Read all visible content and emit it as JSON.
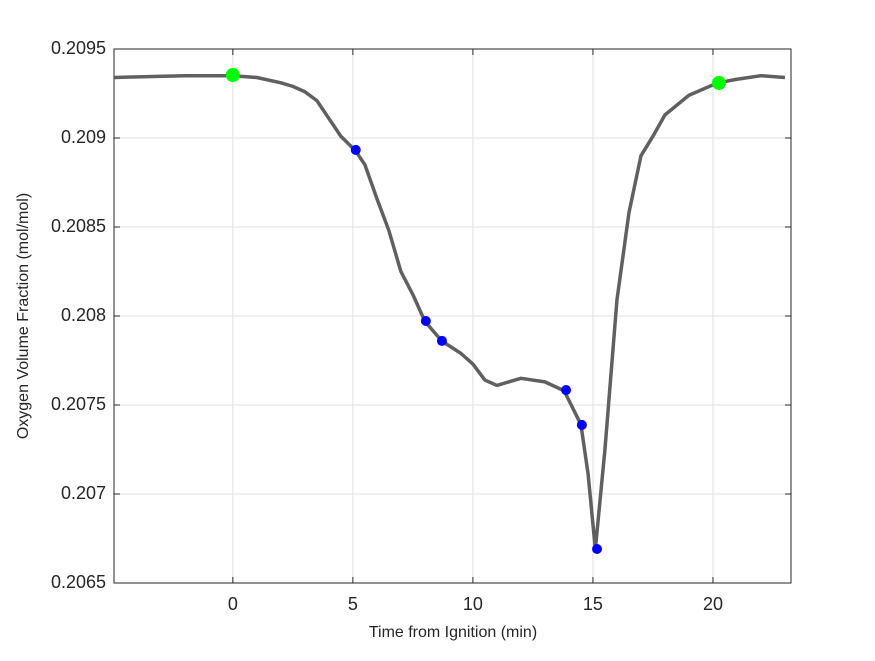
{
  "chart_data": {
    "type": "line",
    "xlabel": "Time from Ignition (min)",
    "ylabel": "Oxygen Volume Fraction (mol/mol)",
    "xlim": [
      -4.95,
      23.25
    ],
    "ylim": [
      0.2065,
      0.2095
    ],
    "xticks": [
      0,
      5,
      10,
      15,
      20
    ],
    "yticks": [
      0.2065,
      0.207,
      0.2075,
      0.208,
      0.2085,
      0.209,
      0.2095
    ],
    "grid": true,
    "series": [
      {
        "mode": "line",
        "color": "#606060",
        "x": [
          -4.95,
          -2,
          0,
          1,
          2,
          2.5,
          3,
          3.5,
          4,
          4.5,
          5.1,
          5.5,
          6,
          6.5,
          7,
          7.5,
          8,
          8.7,
          9.5,
          10,
          10.5,
          11,
          12,
          13,
          13.8,
          14.5,
          14.8,
          15.1,
          15.5,
          16,
          16.5,
          17,
          17.5,
          18,
          19,
          20.2,
          21,
          22,
          23
        ],
        "values": [
          0.20934,
          0.20935,
          0.20935,
          0.20934,
          0.20931,
          0.20929,
          0.20926,
          0.20921,
          0.20911,
          0.20901,
          0.20893,
          0.20885,
          0.20866,
          0.20848,
          0.20825,
          0.20812,
          0.20797,
          0.20786,
          0.20779,
          0.20773,
          0.20764,
          0.20761,
          0.20765,
          0.20763,
          0.20758,
          0.20739,
          0.20711,
          0.20669,
          0.20725,
          0.20809,
          0.20858,
          0.2089,
          0.20901,
          0.20913,
          0.20924,
          0.20931,
          0.20933,
          0.20935,
          0.20934
        ]
      },
      {
        "mode": "markers",
        "color": "#0000ff",
        "size": 5,
        "x": [
          5.12,
          8.04,
          8.71,
          13.88,
          14.54,
          15.17
        ],
        "values": [
          0.208933,
          0.207972,
          0.20786,
          0.207584,
          0.207388,
          0.206691
        ]
      },
      {
        "mode": "markers",
        "color": "#00ff00",
        "size": 7,
        "x": [
          0,
          20.25
        ],
        "values": [
          0.209354,
          0.209309
        ]
      }
    ]
  }
}
